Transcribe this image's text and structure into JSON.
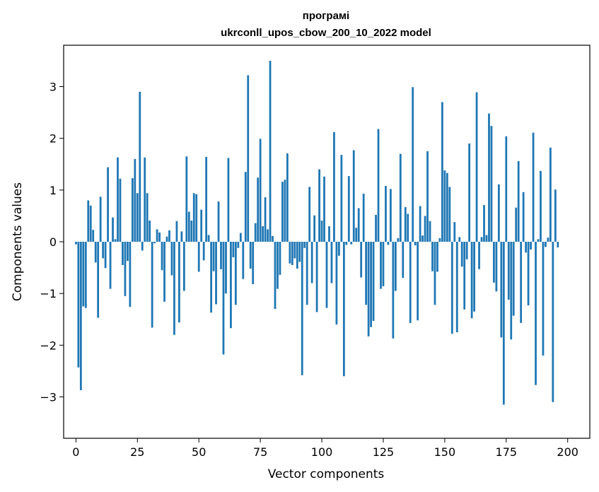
{
  "chart_data": {
    "type": "bar",
    "title_line1": "програмі",
    "title_line2": "ukrconll_upos_cbow_200_10_2022 model",
    "xlabel": "Vector components",
    "ylabel": "Components values",
    "xlim": [
      -5,
      209
    ],
    "ylim": [
      -3.8,
      3.8
    ],
    "xticks": [
      0,
      25,
      50,
      75,
      100,
      125,
      150,
      175,
      200
    ],
    "xtick_labels": [
      "0",
      "25",
      "50",
      "75",
      "100",
      "125",
      "150",
      "175",
      "200"
    ],
    "yticks": [
      -3,
      -2,
      -1,
      0,
      1,
      2,
      3
    ],
    "ytick_labels": [
      "−3",
      "−2",
      "−1",
      "0",
      "1",
      "2",
      "3"
    ],
    "bar_color": "#1f77b4",
    "values": [
      -0.05,
      -2.43,
      -2.87,
      -1.25,
      -1.28,
      0.8,
      0.7,
      0.23,
      -0.4,
      -1.47,
      0.87,
      -0.32,
      -0.51,
      1.44,
      -0.91,
      0.47,
      0.05,
      1.63,
      1.22,
      -0.45,
      -1.05,
      -0.37,
      -1.26,
      1.23,
      1.6,
      0.94,
      2.9,
      -0.17,
      1.63,
      0.94,
      0.41,
      -1.66,
      -0.03,
      0.24,
      0.18,
      -0.55,
      -1.16,
      0.1,
      0.22,
      -0.65,
      -1.8,
      0.4,
      -1.56,
      0.2,
      -0.95,
      1.65,
      0.58,
      0.41,
      0.94,
      0.92,
      -0.58,
      0.62,
      -0.36,
      1.64,
      0.13,
      -1.37,
      -0.57,
      -1.21,
      0.78,
      -0.53,
      -2.18,
      -1.0,
      1.62,
      -1.67,
      -0.3,
      -1.22,
      -0.12,
      0.17,
      -0.72,
      1.35,
      3.22,
      -0.52,
      -0.82,
      0.36,
      1.24,
      1.99,
      0.3,
      0.86,
      0.24,
      3.5,
      0.11,
      -1.3,
      -0.91,
      -0.64,
      1.16,
      1.2,
      1.71,
      -0.42,
      -0.45,
      -0.32,
      -0.52,
      -0.39,
      -2.58,
      -0.12,
      -1.22,
      1.06,
      -0.8,
      0.51,
      -1.36,
      1.4,
      0.41,
      1.26,
      -1.28,
      0.3,
      -0.8,
      2.12,
      -1.6,
      -0.27,
      1.68,
      -2.6,
      -0.06,
      1.27,
      -0.05,
      1.77,
      0.27,
      0.65,
      -0.69,
      0.93,
      -1.22,
      -1.83,
      -1.65,
      -1.53,
      0.52,
      2.18,
      -0.91,
      -0.86,
      1.08,
      -0.06,
      1.02,
      -1.87,
      -0.95,
      0.07,
      1.7,
      -0.7,
      0.67,
      0.54,
      -1.57,
      2.99,
      -0.07,
      -1.52,
      0.69,
      0.12,
      0.5,
      1.75,
      0.4,
      -0.57,
      -1.22,
      -0.58,
      0.07,
      2.7,
      1.38,
      1.33,
      1.06,
      -1.78,
      0.38,
      -1.75,
      0.09,
      -0.48,
      -1.31,
      -0.34,
      1.9,
      -1.48,
      -1.35,
      2.89,
      -0.53,
      0.09,
      0.71,
      0.13,
      2.48,
      2.24,
      -0.79,
      -0.96,
      1.11,
      -1.85,
      -3.15,
      2.04,
      -1.12,
      -1.89,
      -1.43,
      0.66,
      1.56,
      -1.57,
      0.96,
      -0.21,
      -1.23,
      -0.15,
      2.11,
      -2.77,
      0.05,
      1.37,
      -2.2,
      -0.1,
      0.08,
      1.82,
      -3.1,
      1.01,
      -0.11
    ]
  }
}
